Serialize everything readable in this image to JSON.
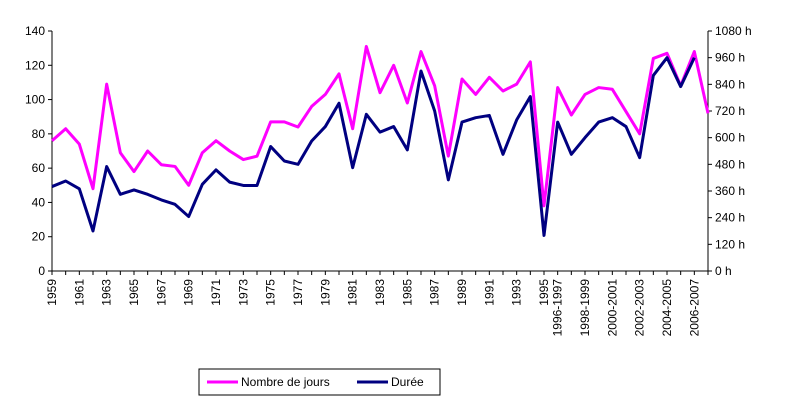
{
  "chart_data": {
    "type": "line",
    "x": [
      "1959",
      "1960",
      "1961",
      "1962",
      "1963",
      "1964",
      "1965",
      "1966",
      "1967",
      "1968",
      "1969",
      "1970",
      "1971",
      "1972",
      "1973",
      "1974",
      "1975",
      "1976",
      "1977",
      "1978",
      "1979",
      "1980",
      "1981",
      "1982",
      "1983",
      "1984",
      "1985",
      "1986",
      "1987",
      "1988",
      "1989",
      "1990",
      "1991",
      "1992",
      "1993",
      "1994",
      "1995",
      "1996-1997",
      "1997-1998",
      "1998-1999",
      "1999-2000",
      "2000-2001",
      "2001-2002",
      "2002-2003",
      "2003-2004",
      "2004-2005",
      "2005-2006",
      "2006-2007",
      "2007-2008"
    ],
    "x_tick_labels": [
      "1959",
      "1961",
      "1963",
      "1965",
      "1967",
      "1969",
      "1971",
      "1973",
      "1975",
      "1977",
      "1979",
      "1981",
      "1983",
      "1985",
      "1987",
      "1989",
      "1991",
      "1993",
      "1995",
      "1996-1997",
      "1998-1999",
      "2000-2001",
      "2002-2003",
      "2004-2005",
      "2006-2007"
    ],
    "series": [
      {
        "name": "Nombre de jours",
        "axis": "left",
        "color": "#ff00ff",
        "values": [
          76,
          83,
          74,
          48,
          109,
          69,
          58,
          70,
          62,
          61,
          50,
          69,
          76,
          70,
          65,
          67,
          87,
          87,
          84,
          96,
          103,
          115,
          83,
          131,
          104,
          120,
          98,
          128,
          108,
          67,
          112,
          103,
          113,
          105,
          109,
          122,
          38,
          107,
          91,
          103,
          107,
          106,
          93,
          80,
          124,
          127,
          108,
          128,
          92
        ]
      },
      {
        "name": "Durée",
        "axis": "right",
        "color": "#000080",
        "values": [
          380,
          405,
          370,
          180,
          470,
          345,
          365,
          345,
          320,
          300,
          245,
          390,
          455,
          400,
          385,
          385,
          560,
          495,
          480,
          585,
          650,
          755,
          465,
          705,
          625,
          650,
          545,
          900,
          720,
          410,
          670,
          690,
          700,
          525,
          680,
          785,
          160,
          670,
          525,
          600,
          670,
          690,
          650,
          510,
          880,
          960,
          830,
          960,
          null
        ]
      }
    ],
    "ylim_left": [
      0,
      140
    ],
    "ylim_right": [
      0,
      1080
    ],
    "y_ticks_left": [
      "0",
      "20",
      "40",
      "60",
      "80",
      "100",
      "120",
      "140"
    ],
    "y_ticks_right": [
      "0 h",
      "120 h",
      "240 h",
      "360 h",
      "480 h",
      "600 h",
      "720 h",
      "840 h",
      "960 h",
      "1080 h"
    ],
    "title": "",
    "xlabel": "",
    "ylabel": "",
    "grid": false,
    "legend_position": "bottom"
  }
}
